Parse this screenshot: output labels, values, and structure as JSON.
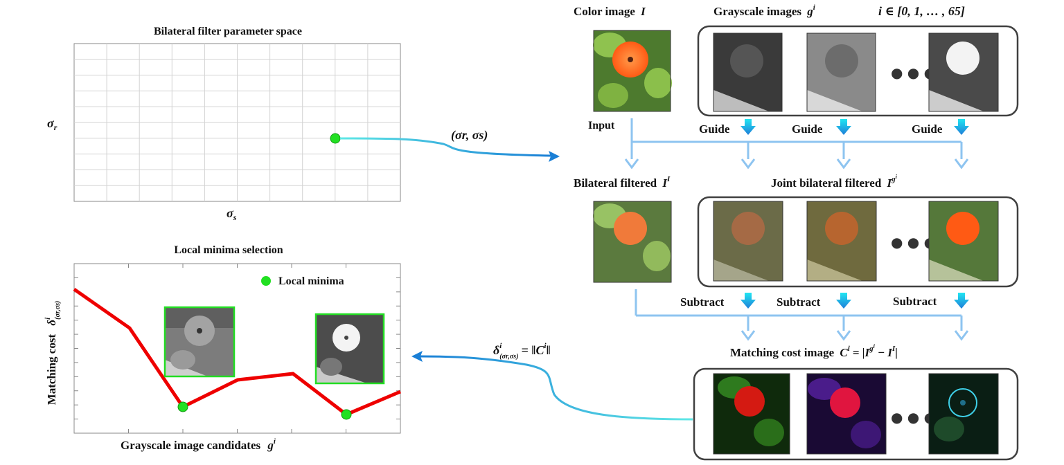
{
  "top_plot": {
    "title": "Bilateral filter parameter space",
    "y_label": "σ",
    "y_sub": "r",
    "x_label": "σ",
    "x_sub": "s",
    "grid": true,
    "point_color": "#22e022"
  },
  "bottom_plot": {
    "title": "Local minima  selection",
    "y_label_text": "Matching cost",
    "y_symbol": "δ",
    "y_sup": "i",
    "y_sub": "(σr,σs)",
    "x_label_text": "Grayscale image candidates",
    "x_symbol": "g",
    "x_sup": "i",
    "legend": "Local minima",
    "line_color": "#ee0000",
    "minima_color": "#22e022"
  },
  "arrows": {
    "param_label": "(σr, σs)",
    "cost_label": "δ",
    "cost_label_sup": "i",
    "cost_label_sub": "(σr,σs)",
    "cost_label_rhs": "= ‖C",
    "cost_label_rhs_sup": "i",
    "cost_label_end": "‖"
  },
  "right": {
    "color_image_title": "Color image",
    "color_image_sym": "I",
    "grayscale_title": "Grayscale images",
    "grayscale_sym": "g",
    "grayscale_sup": "i",
    "index_text": "i ∈ [0, 1, … , 65]",
    "input_label": "Input",
    "guide_label_1": "Guide",
    "guide_label_2": "Guide",
    "guide_label_3": "Guide",
    "bilateral_title": "Bilateral filtered",
    "bilateral_sym": "I",
    "bilateral_sup": "I",
    "joint_title": "Joint bilateral filtered",
    "joint_sym": "I",
    "joint_sup": "g",
    "joint_sup2": "i",
    "subtract_label_1": "Subtract",
    "subtract_label_2": "Subtract",
    "subtract_label_3": "Subtract",
    "matching_title": "Matching cost image",
    "matching_sym": "C",
    "matching_sup": "i",
    "matching_rhs": "= |I",
    "matching_rhs_sup": "g",
    "matching_rhs_sup2": "i",
    "matching_rhs_minus": "− I",
    "matching_rhs_sup3": "I",
    "matching_rhs_end": "|",
    "ellipsis": "● ● ●",
    "arrow_color_light": "#8ec4f0",
    "arrow_color_cyan": "#29d3f0",
    "arrow_color_blue": "#1a7fd6"
  }
}
